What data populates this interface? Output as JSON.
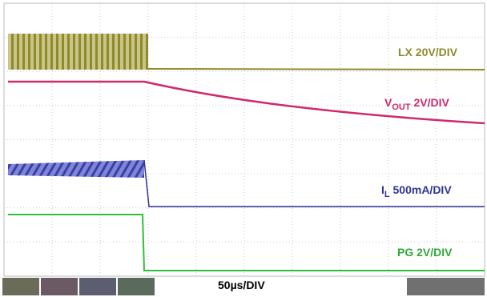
{
  "traces": [
    {
      "label": "LX 20V/DIV"
    },
    {
      "label": "V",
      "subscript": "OUT",
      "suffix": " 2V/DIV"
    },
    {
      "label": "I",
      "subscript": "L",
      "suffix": " 500mA/DIV"
    },
    {
      "label": "PG 2V/DIV"
    }
  ],
  "timebase": "50µs/DIV"
}
